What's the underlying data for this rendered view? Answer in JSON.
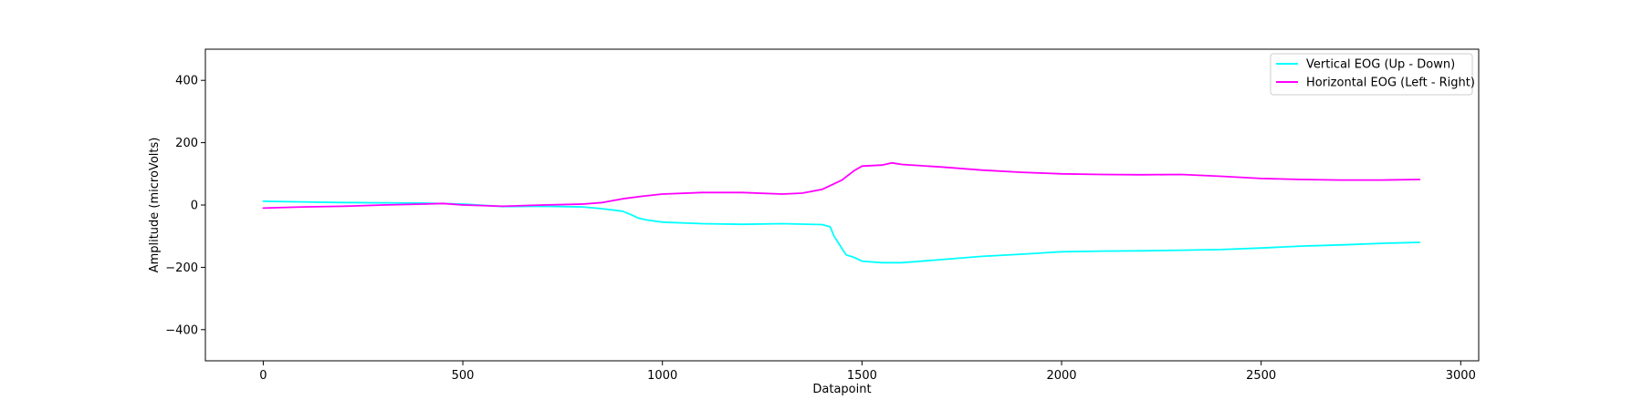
{
  "chart_data": {
    "type": "line",
    "title": "",
    "xlabel": "Datapoint",
    "ylabel": "Amplitude (microVolts)",
    "xlim": [
      -145,
      3045
    ],
    "ylim": [
      -500,
      500
    ],
    "xticks": [
      0,
      500,
      1000,
      1500,
      2000,
      2500,
      3000
    ],
    "yticks": [
      -400,
      -200,
      0,
      200,
      400
    ],
    "xtick_labels": [
      "0",
      "500",
      "1000",
      "1500",
      "2000",
      "2500",
      "3000"
    ],
    "ytick_labels": [
      "−400",
      "−200",
      "0",
      "200",
      "400"
    ],
    "grid": false,
    "legend": "top-right",
    "series": [
      {
        "name": "Vertical EOG (Up - Down)",
        "color": "#00ffff",
        "x": [
          0,
          100,
          200,
          300,
          400,
          500,
          600,
          700,
          800,
          850,
          900,
          920,
          940,
          960,
          1000,
          1100,
          1200,
          1300,
          1400,
          1420,
          1430,
          1440,
          1460,
          1480,
          1500,
          1550,
          1600,
          1700,
          1800,
          1900,
          2000,
          2100,
          2200,
          2300,
          2400,
          2500,
          2600,
          2700,
          2800,
          2897
        ],
        "y": [
          12,
          10,
          8,
          7,
          6,
          3,
          -5,
          -4,
          -6,
          -12,
          -20,
          -30,
          -42,
          -48,
          -55,
          -60,
          -62,
          -60,
          -63,
          -70,
          -100,
          -120,
          -160,
          -168,
          -180,
          -185,
          -185,
          -175,
          -165,
          -158,
          -150,
          -148,
          -147,
          -145,
          -143,
          -138,
          -132,
          -128,
          -123,
          -120
        ]
      },
      {
        "name": "Horizontal EOG (Left - Right)",
        "color": "#ff00ff",
        "x": [
          0,
          100,
          200,
          300,
          400,
          450,
          500,
          600,
          700,
          800,
          850,
          900,
          950,
          1000,
          1100,
          1200,
          1300,
          1350,
          1400,
          1450,
          1480,
          1500,
          1550,
          1575,
          1600,
          1700,
          1800,
          1900,
          2000,
          2100,
          2200,
          2300,
          2400,
          2500,
          2600,
          2700,
          2800,
          2897
        ],
        "y": [
          -10,
          -6,
          -4,
          0,
          3,
          5,
          0,
          -4,
          0,
          3,
          8,
          20,
          28,
          35,
          40,
          40,
          35,
          38,
          50,
          80,
          110,
          125,
          128,
          135,
          130,
          122,
          112,
          105,
          100,
          98,
          97,
          98,
          92,
          85,
          82,
          80,
          80,
          82
        ]
      }
    ]
  }
}
